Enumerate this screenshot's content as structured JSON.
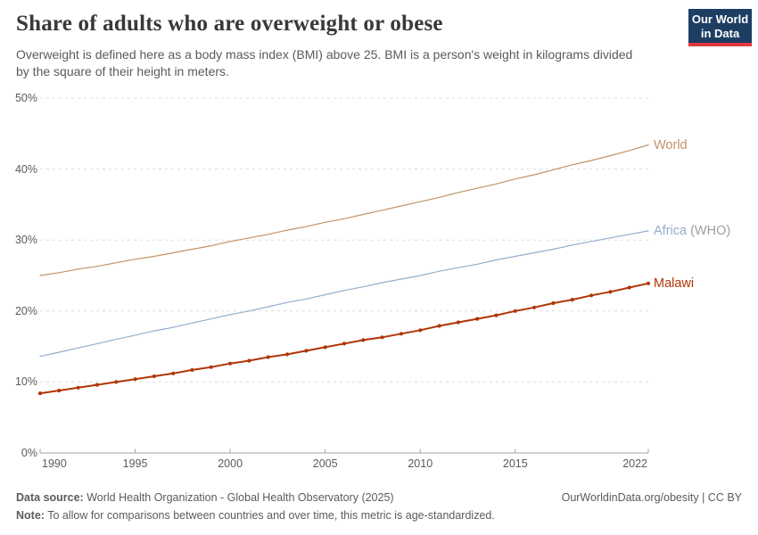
{
  "header": {
    "title": "Share of adults who are overweight or obese",
    "subtitle_line1": "Overweight is defined here as a body mass index (BMI) above 25. BMI is a person's weight in kilograms divided",
    "subtitle_line2": "by the square of their height in meters.",
    "logo": {
      "line1": "Our World",
      "line2": "in Data",
      "bg_color": "#1d3d63",
      "stripe_color": "#e0373f"
    }
  },
  "chart_data": {
    "type": "line",
    "title": "Share of adults who are overweight or obese",
    "xlabel": "",
    "ylabel": "",
    "ylim": [
      0,
      50
    ],
    "grid": "horizontal dashed",
    "legend_position": "right-of-line-ends",
    "x": [
      1990,
      1991,
      1992,
      1993,
      1994,
      1995,
      1996,
      1997,
      1998,
      1999,
      2000,
      2001,
      2002,
      2003,
      2004,
      2005,
      2006,
      2007,
      2008,
      2009,
      2010,
      2011,
      2012,
      2013,
      2014,
      2015,
      2016,
      2017,
      2018,
      2019,
      2020,
      2021,
      2022
    ],
    "x_ticks": [
      1990,
      1995,
      2000,
      2005,
      2010,
      2015,
      2022
    ],
    "y_ticks": [
      {
        "v": 0,
        "label": "0%"
      },
      {
        "v": 10,
        "label": "10%"
      },
      {
        "v": 20,
        "label": "20%"
      },
      {
        "v": 30,
        "label": "30%"
      },
      {
        "v": 40,
        "label": "40%"
      },
      {
        "v": 50,
        "label": "50%"
      }
    ],
    "series": [
      {
        "name": "World",
        "label": "World",
        "label_suffix": "",
        "color": "#c29368",
        "suffix_color": "#9e9e9e",
        "line_width": 1.2,
        "markers": false,
        "values": [
          25.0,
          25.4,
          25.9,
          26.3,
          26.8,
          27.3,
          27.7,
          28.2,
          28.7,
          29.2,
          29.8,
          30.3,
          30.8,
          31.4,
          31.9,
          32.5,
          33.0,
          33.6,
          34.2,
          34.8,
          35.4,
          36.0,
          36.7,
          37.3,
          37.9,
          38.6,
          39.2,
          39.9,
          40.6,
          41.2,
          41.9,
          42.6,
          43.4
        ]
      },
      {
        "name": "Africa (WHO)",
        "label": "Africa",
        "label_suffix": " (WHO)",
        "color": "#94aece",
        "suffix_color": "#9e9e9e",
        "line_width": 1.2,
        "markers": false,
        "values": [
          13.6,
          14.2,
          14.8,
          15.4,
          16.0,
          16.6,
          17.2,
          17.7,
          18.3,
          18.9,
          19.5,
          20.0,
          20.6,
          21.2,
          21.7,
          22.3,
          22.9,
          23.4,
          24.0,
          24.5,
          25.0,
          25.6,
          26.1,
          26.6,
          27.2,
          27.7,
          28.2,
          28.7,
          29.3,
          29.8,
          30.3,
          30.8,
          31.3
        ]
      },
      {
        "name": "Malawi",
        "label": "Malawi",
        "label_suffix": "",
        "color": "#b13507",
        "suffix_color": "#9e9e9e",
        "line_width": 2,
        "markers": true,
        "values": [
          8.4,
          8.8,
          9.2,
          9.6,
          10.0,
          10.4,
          10.8,
          11.2,
          11.7,
          12.1,
          12.6,
          13.0,
          13.5,
          13.9,
          14.4,
          14.9,
          15.4,
          15.9,
          16.3,
          16.8,
          17.3,
          17.9,
          18.4,
          18.9,
          19.4,
          20.0,
          20.5,
          21.1,
          21.6,
          22.2,
          22.7,
          23.3,
          23.9
        ]
      }
    ],
    "style": {
      "gridline_color": "#dcdcdc",
      "axis_color": "#a5a5a5",
      "tick_label_color": "#5b5b5b"
    }
  },
  "footer": {
    "datasource_label": "Data source:",
    "datasource_text": " World Health Organization - Global Health Observatory (2025)",
    "note_label": "Note:",
    "note_text": " To allow for comparisons between countries and over time, this metric is age-standardized.",
    "right_text": "OurWorldinData.org/obesity | CC BY"
  }
}
